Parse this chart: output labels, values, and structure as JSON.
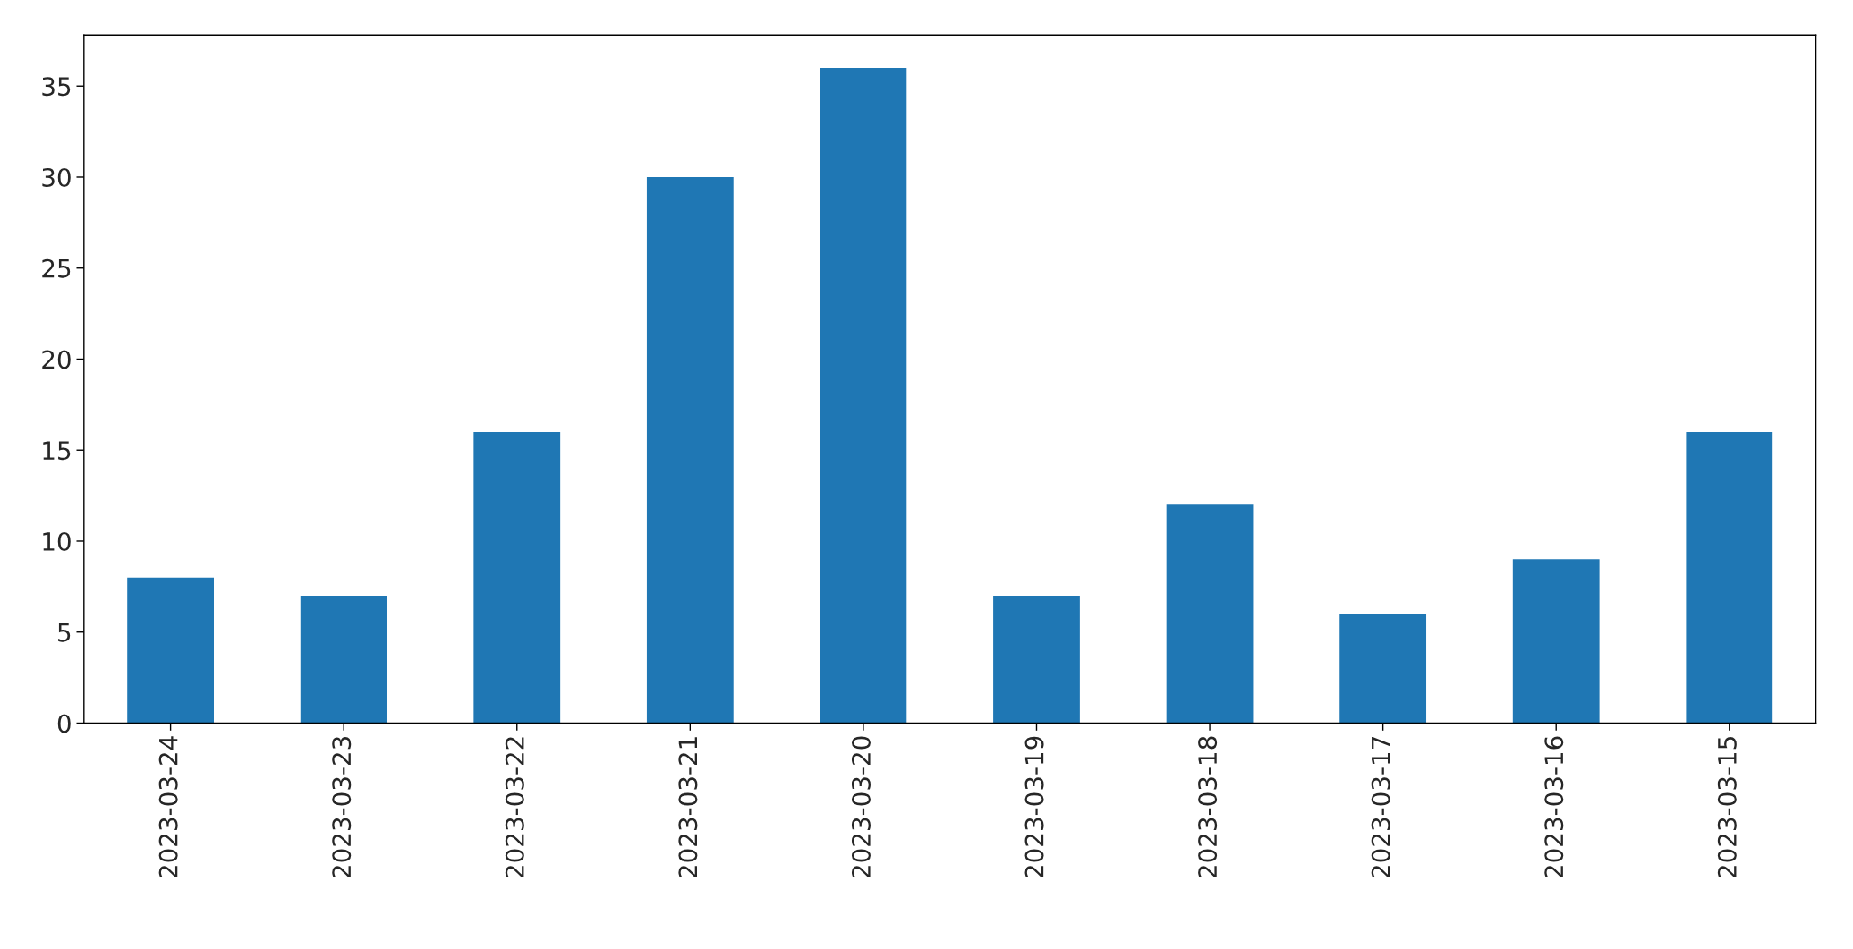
{
  "chart_data": {
    "type": "bar",
    "categories": [
      "2023-03-24",
      "2023-03-23",
      "2023-03-22",
      "2023-03-21",
      "2023-03-20",
      "2023-03-19",
      "2023-03-18",
      "2023-03-17",
      "2023-03-16",
      "2023-03-15"
    ],
    "values": [
      8,
      7,
      16,
      30,
      36,
      7,
      12,
      6,
      9,
      16
    ],
    "color": "#1f77b4",
    "ylim": [
      0,
      37.8
    ],
    "yticks": [
      0,
      5,
      10,
      15,
      20,
      25,
      30,
      35
    ],
    "grid": false,
    "legend": false
  }
}
